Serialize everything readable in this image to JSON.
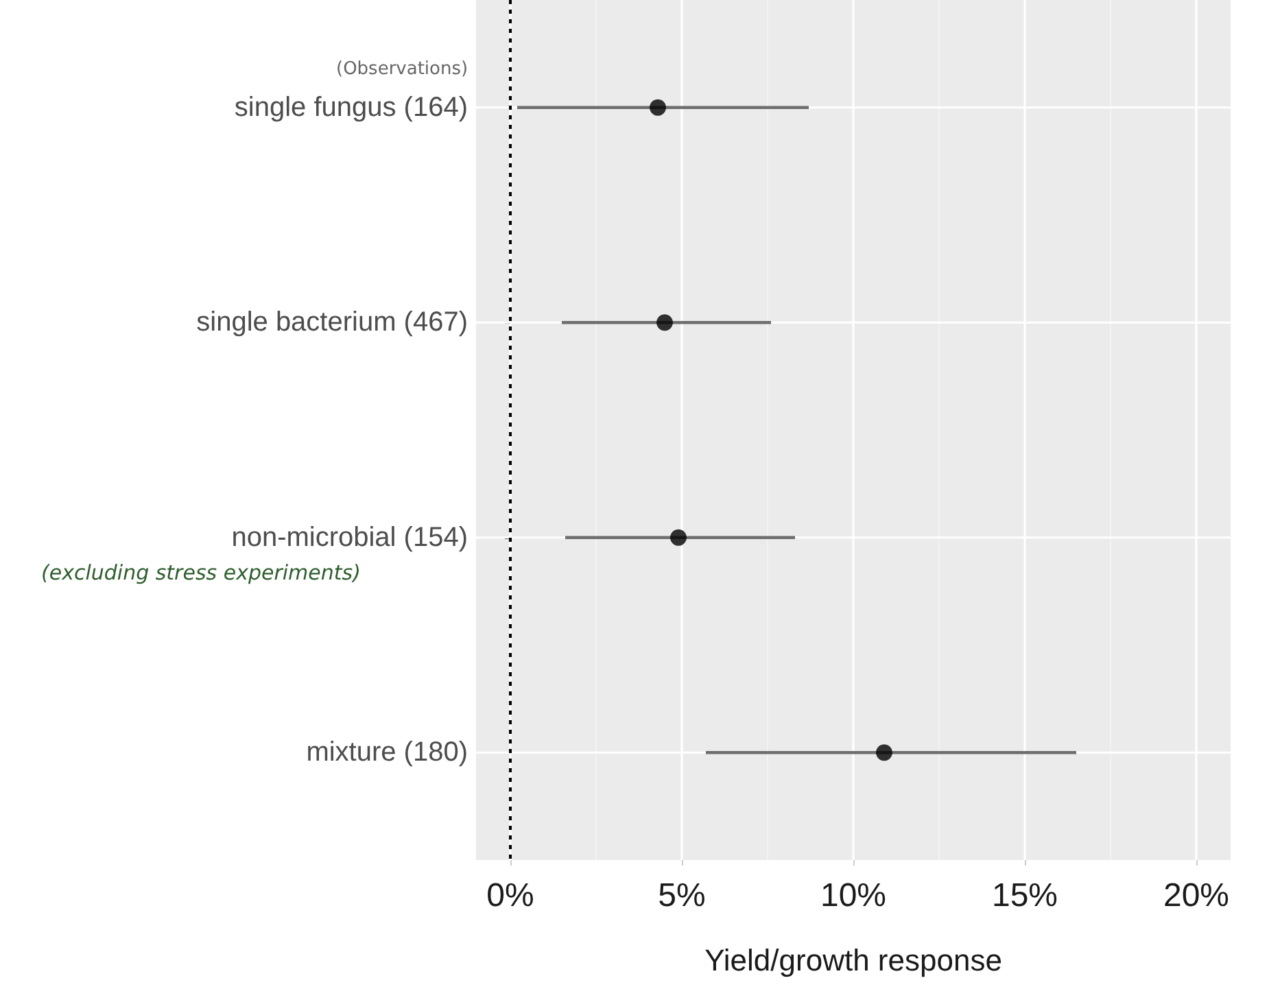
{
  "chart_data": {
    "type": "scatter",
    "orientation": "horizontal",
    "xlabel": "Yield/growth response",
    "categories": [
      "single fungus (164)",
      "single bacterium (467)",
      "non-microbial (154)",
      "mixture (180)"
    ],
    "values": [
      4.3,
      4.5,
      4.9,
      10.9
    ],
    "errors": [
      [
        0.2,
        8.7
      ],
      [
        1.5,
        7.6
      ],
      [
        1.6,
        8.3
      ],
      [
        5.7,
        16.5
      ]
    ],
    "color": "#000000",
    "marker": "circle",
    "xlim": [
      -1,
      21
    ],
    "xticks": [
      {
        "value": 0,
        "label": "0%"
      },
      {
        "value": 5,
        "label": "5%"
      },
      {
        "value": 10,
        "label": "10%"
      },
      {
        "value": 15,
        "label": "15%"
      },
      {
        "value": 20,
        "label": "20%"
      }
    ],
    "ref_lines": [
      {
        "axis": "x",
        "value": 0,
        "color": "#000000",
        "line_style": "dotted"
      }
    ],
    "grid": true,
    "annotations": [
      "(Observations)",
      "(excluding stress experiments)"
    ]
  }
}
